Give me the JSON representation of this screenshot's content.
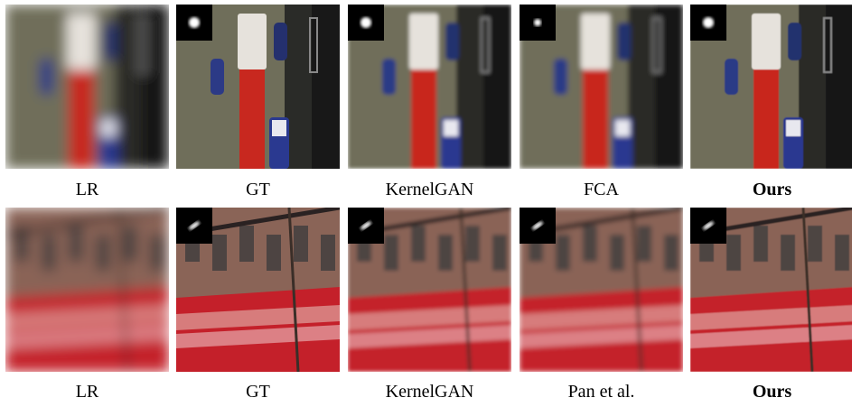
{
  "rows": [
    {
      "captions": [
        "LR",
        "GT",
        "KernelGAN",
        "FCA",
        "Ours"
      ]
    },
    {
      "captions": [
        "LR",
        "GT",
        "KernelGAN",
        "Pan et al.",
        "Ours"
      ]
    }
  ]
}
